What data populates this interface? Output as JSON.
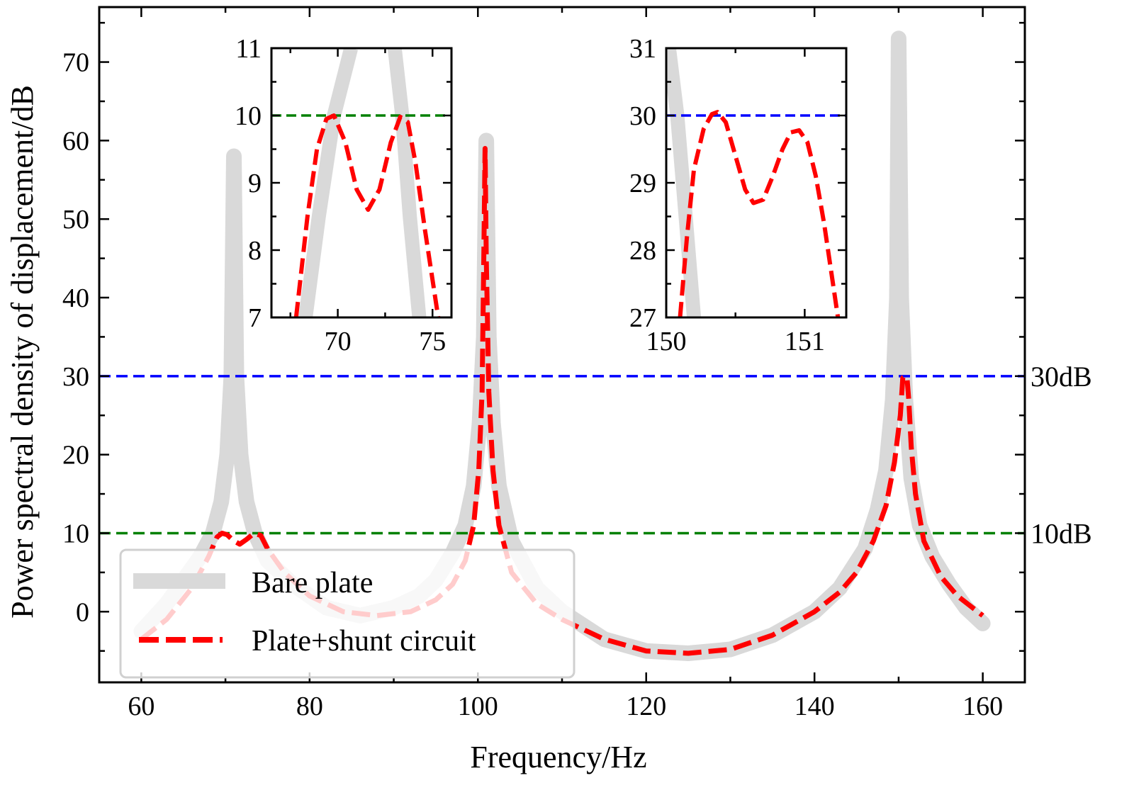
{
  "chart_data": {
    "type": "line",
    "xlabel": "Frequency/Hz",
    "ylabel": "Power spectral density of displacement/dB",
    "xlim": [
      55,
      165
    ],
    "ylim": [
      -9,
      77
    ],
    "xticks": [
      60,
      80,
      100,
      120,
      140,
      160
    ],
    "yticks": [
      0,
      10,
      20,
      30,
      40,
      50,
      60,
      70
    ],
    "grid": false,
    "legend_position": "lower-left",
    "series": [
      {
        "name": "Bare plate",
        "style": "solid",
        "color": "#d9d9d9",
        "x": [
          60,
          63,
          65,
          67,
          68.5,
          69.5,
          70.2,
          70.7,
          71.0,
          71.3,
          71.8,
          72.5,
          73.5,
          75,
          78,
          82,
          86,
          90,
          93,
          95,
          97,
          98.5,
          99.5,
          100.2,
          100.7,
          101.0,
          101.3,
          101.8,
          102.5,
          104,
          107,
          110,
          115,
          120,
          125,
          130,
          135,
          140,
          143,
          146,
          147.5,
          148.5,
          149.3,
          149.8,
          150.0,
          150.3,
          150.8,
          151.5,
          152.5,
          154,
          156,
          158,
          160
        ],
        "y": [
          -2.5,
          1,
          4,
          7,
          10,
          14,
          20,
          30,
          58,
          30,
          20,
          14,
          10,
          6.5,
          3.5,
          0.5,
          -0.5,
          0.5,
          2,
          4,
          7.5,
          11,
          16,
          24,
          35,
          60,
          35,
          24,
          16,
          9,
          3,
          0,
          -3.5,
          -5,
          -5.3,
          -4.8,
          -3,
          0,
          3,
          8,
          13,
          18,
          27,
          40,
          73,
          40,
          27,
          17,
          11,
          7,
          3.5,
          0.5,
          -1.5
        ]
      },
      {
        "name": "Plate+shunt circuit",
        "style": "dashed",
        "color": "#ff0000",
        "x": [
          60,
          63,
          66,
          68,
          69,
          69.6,
          70.2,
          71,
          71.7,
          72.5,
          73.4,
          74.2,
          75,
          77,
          80,
          84,
          88,
          92,
          95,
          97,
          98.5,
          99.5,
          100.1,
          100.5,
          100.7,
          100.85,
          101.0,
          101.3,
          101.8,
          102.5,
          104,
          107,
          110,
          115,
          120,
          125,
          130,
          135,
          140,
          143,
          145,
          147,
          148.5,
          149.5,
          150.2,
          150.5,
          150.8,
          151.0,
          151.2,
          151.5,
          152,
          153,
          155,
          157,
          160
        ],
        "y": [
          -3.5,
          -1,
          3,
          7,
          9.5,
          10,
          9.8,
          9,
          8.6,
          9.2,
          10,
          9.7,
          8,
          5,
          2,
          0,
          -0.5,
          0,
          1.5,
          3.5,
          6.5,
          11,
          18,
          28,
          45,
          59,
          45,
          28,
          18,
          11,
          5,
          1,
          -1,
          -3.5,
          -5,
          -5.3,
          -4.8,
          -3,
          0,
          2.5,
          5,
          9,
          13.5,
          19,
          25,
          29.8,
          30,
          29.7,
          27,
          21,
          15,
          9,
          4.5,
          2,
          -0.5
        ]
      }
    ],
    "reference_lines": [
      {
        "name": "30dB",
        "y": 30,
        "color": "#0000ff",
        "style": "dashed"
      },
      {
        "name": "10dB",
        "y": 10,
        "color": "#008000",
        "style": "dashed"
      }
    ],
    "insets": [
      {
        "xlim": [
          66.5,
          76
        ],
        "ylim": [
          7,
          11
        ],
        "xticks": [
          70,
          75
        ],
        "yticks": [
          7,
          8,
          9,
          10,
          11
        ],
        "reference_line": {
          "y": 10,
          "color": "#008000"
        },
        "series": [
          {
            "name": "Bare plate left flank",
            "x": [
              68.3,
              69.0,
              69.8,
              70.7
            ],
            "y": [
              7,
              8.5,
              10,
              11
            ]
          },
          {
            "name": "Bare plate right flank",
            "x": [
              73.0,
              73.4,
              73.8,
              74.3
            ],
            "y": [
              11,
              10,
              8.5,
              7
            ]
          },
          {
            "name": "Plate+shunt circuit",
            "x": [
              67.8,
              68.4,
              68.9,
              69.4,
              69.8,
              70.4,
              71.0,
              71.6,
              72.2,
              72.8,
              73.3,
              73.7,
              74.1,
              74.6,
              75.3
            ],
            "y": [
              7,
              8.5,
              9.5,
              9.95,
              10,
              9.6,
              8.9,
              8.6,
              8.9,
              9.6,
              9.98,
              9.9,
              9.3,
              8.3,
              7
            ]
          }
        ]
      },
      {
        "xlim": [
          150,
          151.3
        ],
        "ylim": [
          27,
          31
        ],
        "xticks": [
          150,
          151
        ],
        "yticks": [
          27,
          28,
          29,
          30,
          31
        ],
        "reference_line": {
          "y": 30,
          "color": "#0000ff"
        },
        "series": [
          {
            "name": "Bare plate",
            "x": [
              150.02,
              150.08,
              150.14,
              150.2
            ],
            "y": [
              31,
              30,
              28.5,
              27
            ]
          },
          {
            "name": "Plate+shunt circuit",
            "x": [
              150.1,
              150.15,
              150.2,
              150.27,
              150.33,
              150.37,
              150.43,
              150.5,
              150.57,
              150.63,
              150.7,
              150.77,
              150.84,
              150.9,
              150.96,
              151.02,
              151.08,
              151.14,
              151.19,
              151.24
            ],
            "y": [
              27,
              28.2,
              29.2,
              29.8,
              30.02,
              30.05,
              29.9,
              29.4,
              28.9,
              28.7,
              28.75,
              29.1,
              29.5,
              29.75,
              29.78,
              29.6,
              29.1,
              28.4,
              27.7,
              27
            ]
          }
        ]
      }
    ]
  }
}
